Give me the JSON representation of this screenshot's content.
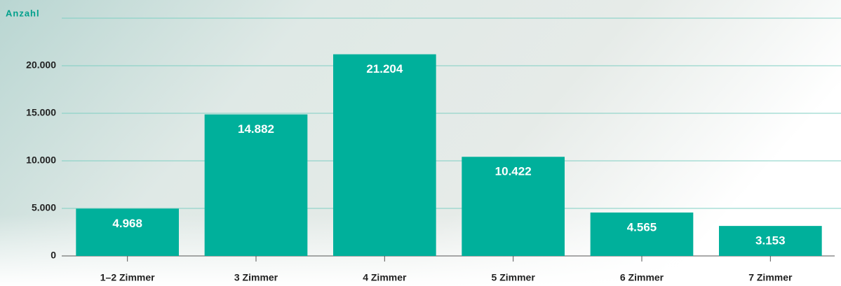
{
  "chart_data": {
    "type": "bar",
    "y_label": "Anzahl",
    "categories": [
      "1–2 Zimmer",
      "3 Zimmer",
      "4 Zimmer",
      "5 Zimmer",
      "6 Zimmer",
      "7 Zimmer"
    ],
    "values": [
      4968,
      14882,
      21204,
      10422,
      4565,
      3153
    ],
    "value_labels": [
      "4.968",
      "14.882",
      "21.204",
      "10.422",
      "4.565",
      "3.153"
    ],
    "color": "#00b09b",
    "ylim": [
      0,
      25000
    ],
    "yticks": [
      0,
      {
        "value": 5000,
        "label": "5.000"
      },
      {
        "value": 10000,
        "label": "10.000"
      },
      {
        "value": 15000,
        "label": "15.000"
      },
      {
        "value": 20000,
        "label": "20.000"
      }
    ],
    "grid": true
  }
}
